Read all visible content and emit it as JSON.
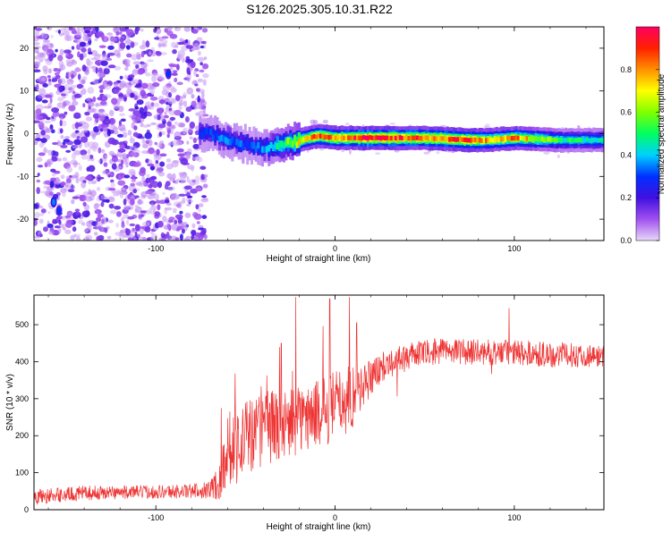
{
  "title": "S126.2025.305.10.31.R22",
  "chart_data": [
    {
      "type": "heatmap",
      "name": "spectrogram",
      "xlabel": "Height of straight line (km)",
      "ylabel": "Frequency (Hz)",
      "xlim": [
        -168,
        150
      ],
      "ylim": [
        -25,
        25
      ],
      "x_ticks": [
        -100,
        0,
        100
      ],
      "x_tick_labels": [
        "-100",
        "0",
        "100"
      ],
      "y_ticks": [
        -20,
        -10,
        0,
        10,
        20
      ],
      "y_tick_labels": [
        "-20",
        "-10",
        "0",
        "10",
        "20"
      ],
      "colorbar": {
        "label": "Normalized spectral amplitude",
        "range": [
          0,
          1
        ],
        "ticks": [
          0.0,
          0.2,
          0.4,
          0.6,
          0.8
        ],
        "tick_labels": [
          "0.0",
          "0.2",
          "0.4",
          "0.6",
          "0.8"
        ],
        "colors": [
          "#e8d8f8",
          "#a050f0",
          "#4010e0",
          "#0030ff",
          "#00d0ff",
          "#00ff60",
          "#80ff00",
          "#ffff00",
          "#ff9000",
          "#ff2000",
          "#ff0060"
        ]
      },
      "noise_region_x": [
        -168,
        -75
      ],
      "ridge": {
        "description_points_x": [
          -70,
          -60,
          -50,
          -40,
          -30,
          -20,
          -10,
          0,
          20,
          50,
          75,
          85,
          100,
          125,
          150
        ],
        "frequency": [
          0,
          -1.5,
          -2.5,
          -3.5,
          -2.5,
          -1.5,
          -0.5,
          -1,
          -1,
          -1,
          -1.5,
          -1.5,
          -1,
          -1.5,
          -1.5
        ],
        "amplitude": [
          0.3,
          0.35,
          0.3,
          0.35,
          0.5,
          0.7,
          0.85,
          0.8,
          0.95,
          0.85,
          0.9,
          0.75,
          0.8,
          0.5,
          0.45
        ]
      },
      "hot_spots": [
        {
          "x": -93,
          "y": 14,
          "amplitude": 0.3
        },
        {
          "x": -157,
          "y": -16,
          "amplitude": 0.35
        },
        {
          "x": -154,
          "y": -18,
          "amplitude": 0.3
        }
      ]
    },
    {
      "type": "line",
      "name": "snr",
      "xlabel": "Height of straight line (km)",
      "ylabel": "SNR (10 * v/v)",
      "xlim": [
        -168,
        150
      ],
      "ylim": [
        0,
        580
      ],
      "x_ticks": [
        -100,
        0,
        100
      ],
      "x_tick_labels": [
        "-100",
        "0",
        "100"
      ],
      "y_ticks": [
        0,
        100,
        200,
        300,
        400,
        500
      ],
      "y_tick_labels": [
        "0",
        "100",
        "200",
        "300",
        "400",
        "500"
      ],
      "color": "#ee3333",
      "profile_x": [
        -168,
        -140,
        -110,
        -80,
        -70,
        -64,
        -60,
        -50,
        -40,
        -30,
        -20,
        -10,
        0,
        10,
        20,
        30,
        45,
        60,
        80,
        100,
        120,
        150
      ],
      "profile_mean": [
        35,
        45,
        48,
        50,
        55,
        80,
        170,
        190,
        220,
        230,
        240,
        260,
        280,
        310,
        360,
        400,
        420,
        430,
        425,
        425,
        420,
        415
      ],
      "profile_noise": [
        20,
        20,
        18,
        20,
        25,
        60,
        110,
        110,
        100,
        100,
        90,
        90,
        100,
        90,
        50,
        35,
        35,
        35,
        35,
        35,
        35,
        30
      ],
      "spikes": [
        {
          "x": -22,
          "value": 575
        },
        {
          "x": -3,
          "value": 570
        },
        {
          "x": 8,
          "value": 575
        },
        {
          "x": 12,
          "value": 505
        },
        {
          "x": -30,
          "value": 450
        },
        {
          "x": 97,
          "value": 545
        }
      ]
    }
  ]
}
